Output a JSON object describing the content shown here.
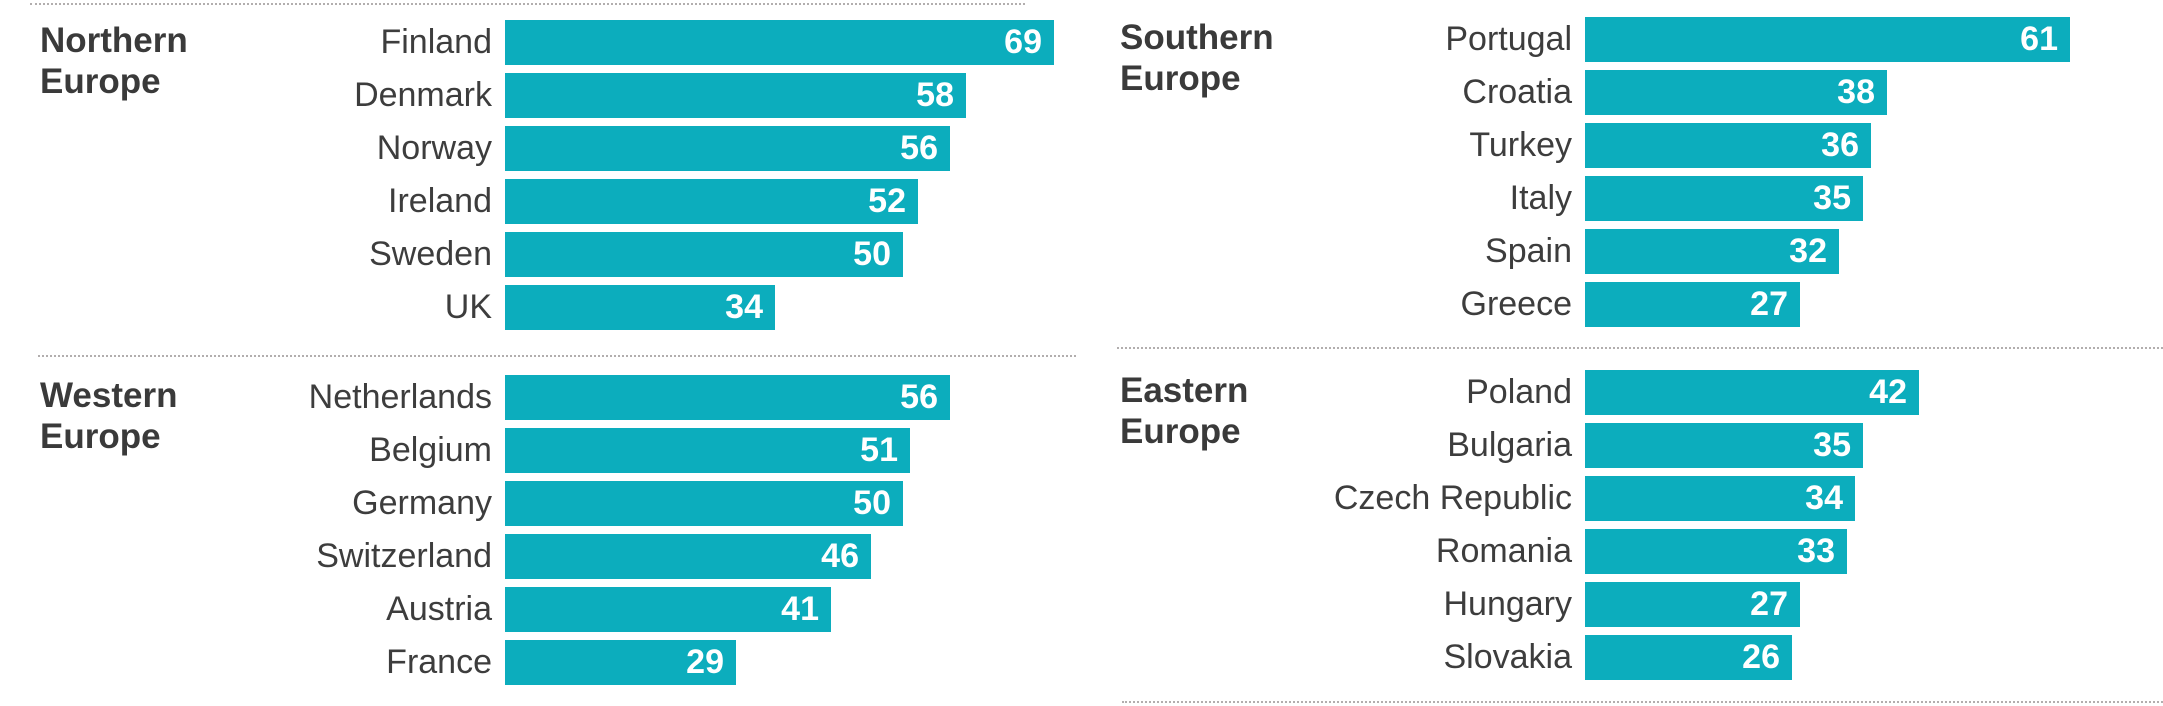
{
  "colors": {
    "bar": "#0cadbd",
    "label_text": "#3d3d3d",
    "region_text": "#3a3a3a",
    "value_text": "#ffffff",
    "divider": "#b2aeae",
    "background": "#ffffff"
  },
  "chart_data": {
    "type": "bar",
    "orientation": "horizontal",
    "grid": false,
    "legend": false,
    "xlim": [
      0,
      69
    ],
    "panels": [
      {
        "region": "Northern Europe",
        "categories": [
          "Finland",
          "Denmark",
          "Norway",
          "Ireland",
          "Sweden",
          "UK"
        ],
        "values": [
          69,
          58,
          56,
          52,
          50,
          34
        ]
      },
      {
        "region": "Southern Europe",
        "categories": [
          "Portugal",
          "Croatia",
          "Turkey",
          "Italy",
          "Spain",
          "Greece"
        ],
        "values": [
          61,
          38,
          36,
          35,
          32,
          27
        ]
      },
      {
        "region": "Western Europe",
        "categories": [
          "Netherlands",
          "Belgium",
          "Germany",
          "Switzerland",
          "Austria",
          "France"
        ],
        "values": [
          56,
          51,
          50,
          46,
          41,
          29
        ]
      },
      {
        "region": "Eastern Europe",
        "categories": [
          "Poland",
          "Bulgaria",
          "Czech Republic",
          "Romania",
          "Hungary",
          "Slovakia"
        ],
        "values": [
          42,
          35,
          34,
          33,
          27,
          26
        ]
      }
    ]
  }
}
